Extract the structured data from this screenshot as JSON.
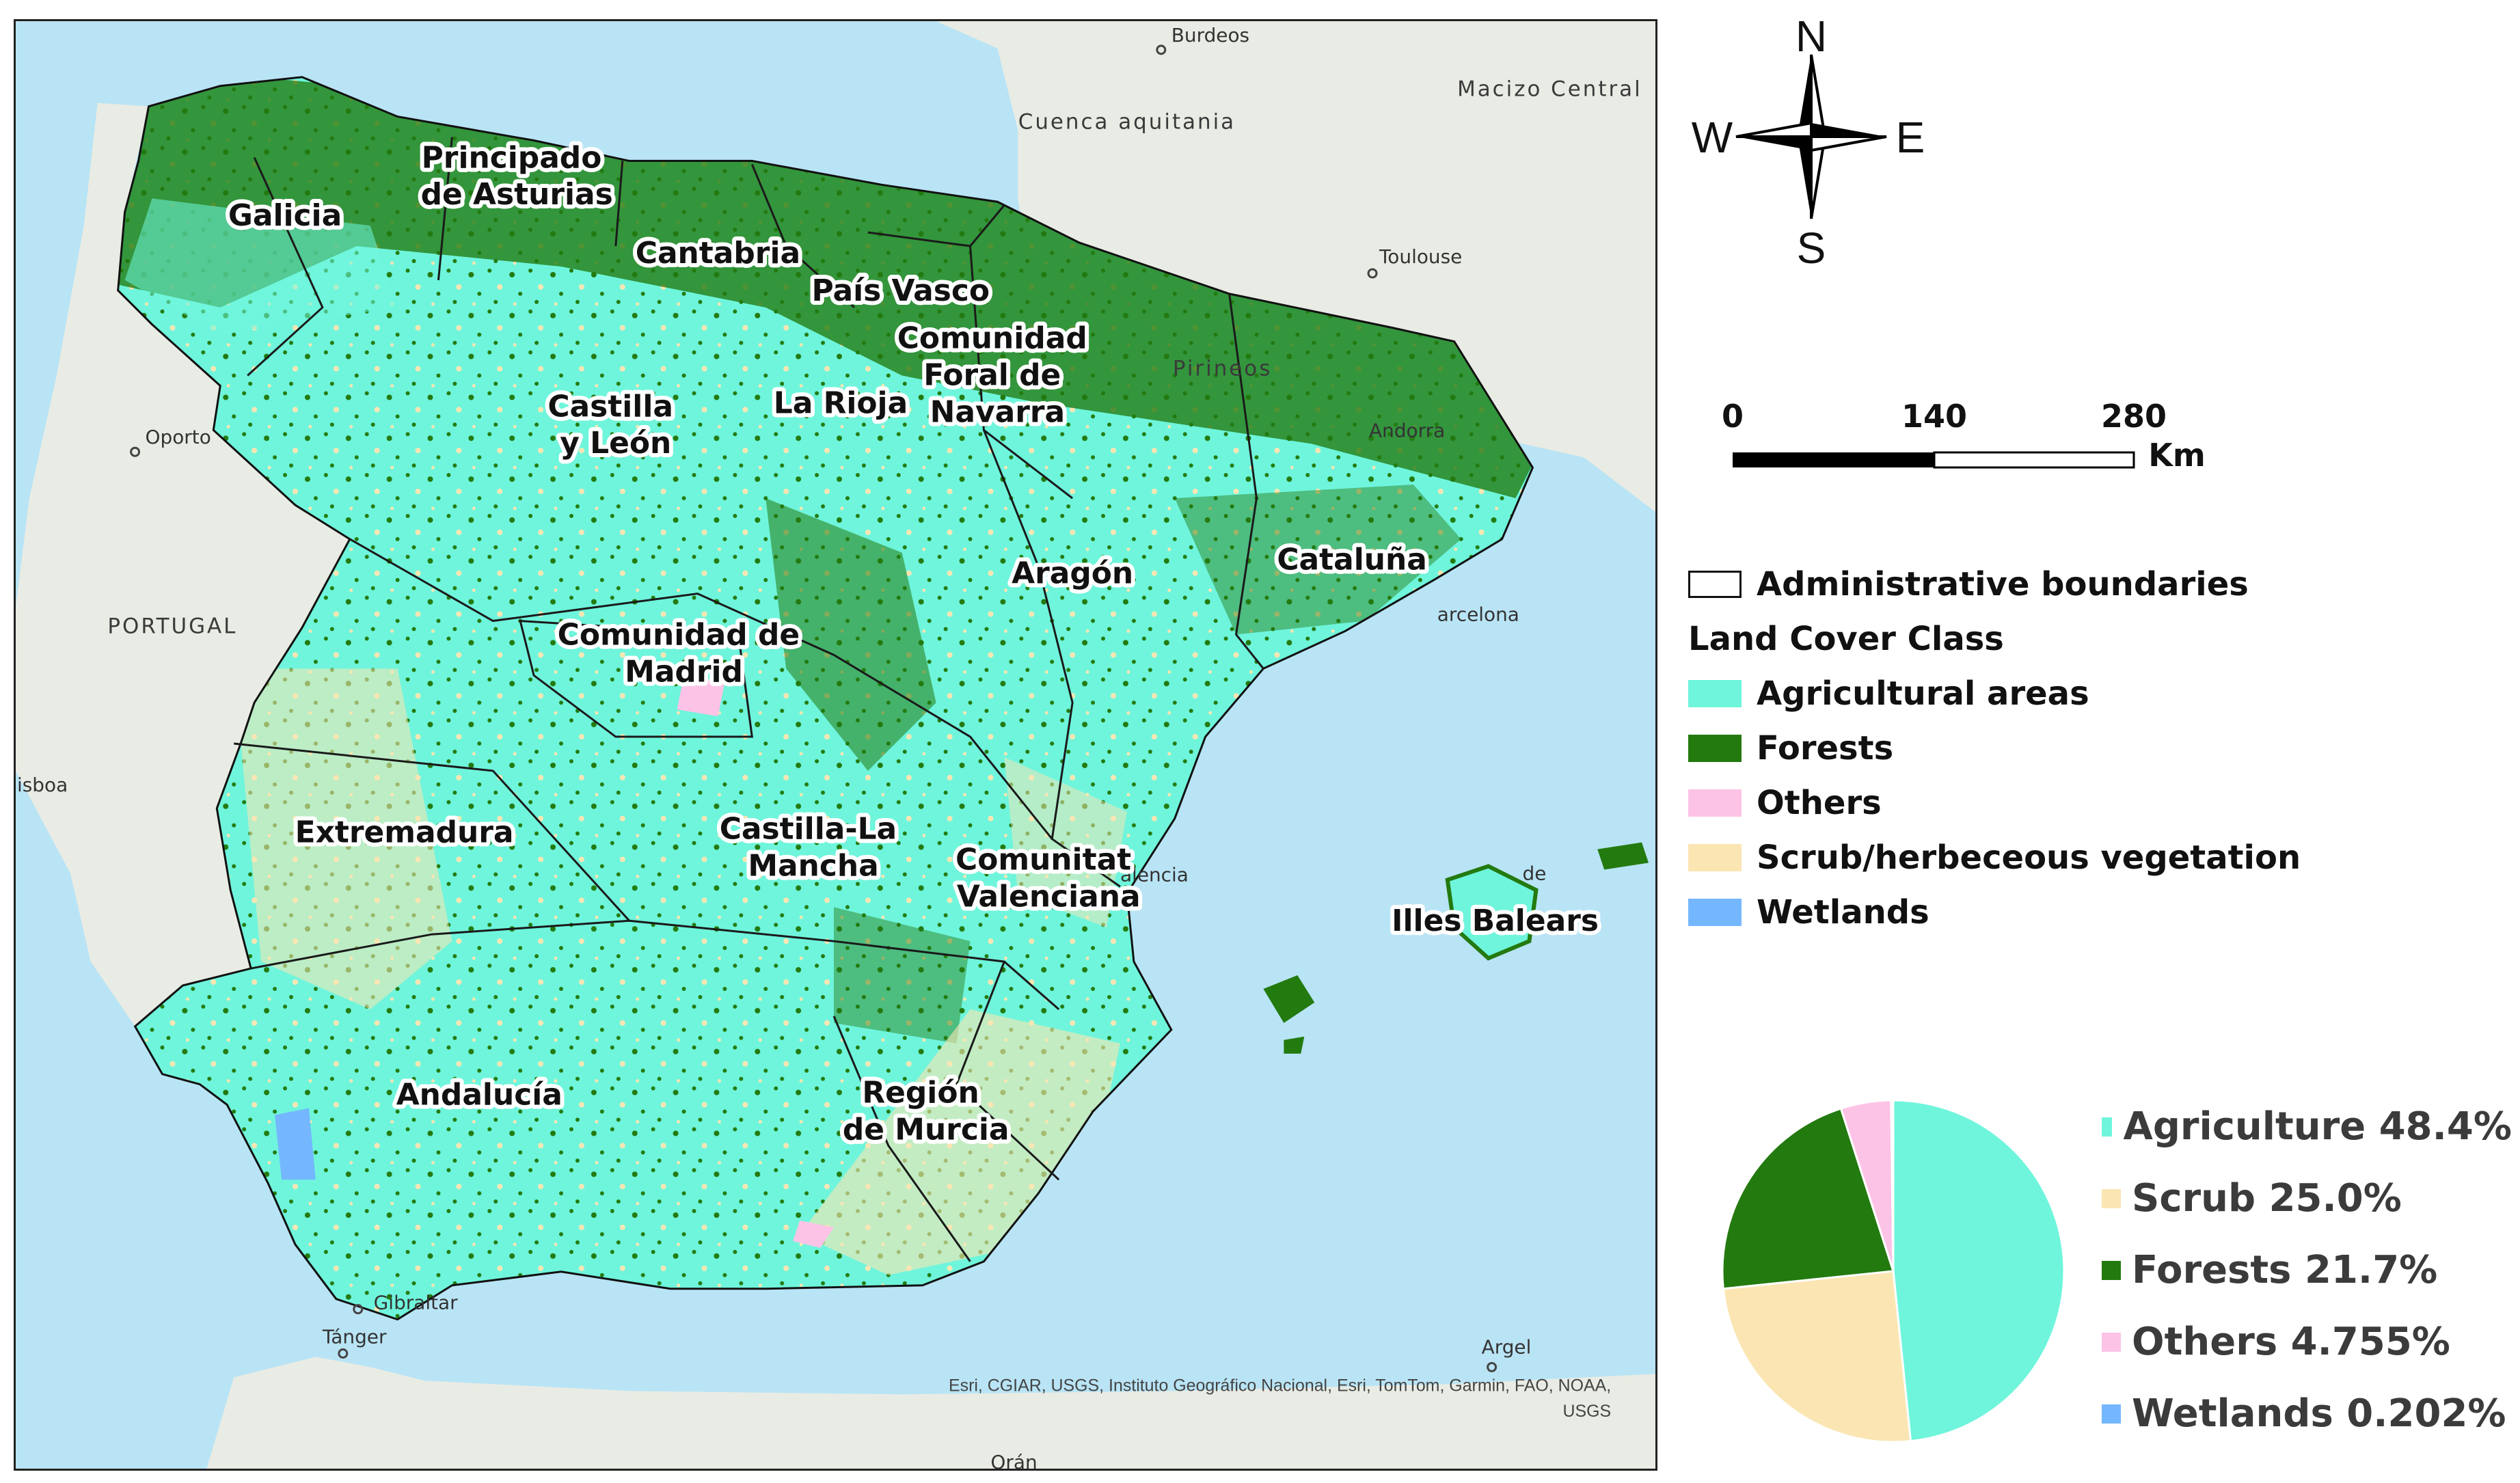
{
  "map": {
    "regions": [
      {
        "name": "Galicia"
      },
      {
        "name": "Principado de Asturias"
      },
      {
        "name": "Cantabria"
      },
      {
        "name": "País Vasco"
      },
      {
        "name": "Comunidad Foral de Navarra"
      },
      {
        "name": "La Rioja"
      },
      {
        "name": "Castilla y León"
      },
      {
        "name": "Aragón"
      },
      {
        "name": "Cataluña"
      },
      {
        "name": "Comunidad de Madrid"
      },
      {
        "name": "Extremadura"
      },
      {
        "name": "Castilla-La Mancha"
      },
      {
        "name": "Comunitat Valenciana"
      },
      {
        "name": "Illes Balears"
      },
      {
        "name": "Andalucía"
      },
      {
        "name": "Región de Murcia"
      }
    ],
    "basemap_labels": {
      "burdeos": "Burdeos",
      "macizo_central": "Macizo Central",
      "cuenca_aquitania": "Cuenca aquitania",
      "toulouse": "Toulouse",
      "pirineos": "Pirineos",
      "andorra": "Andorra",
      "oporto": "Oporto",
      "portugal": "PORTUGAL",
      "lisboa": "isboa",
      "barcelona": "arcelona",
      "valencia": "alencia",
      "palma": "de",
      "gibraltar": "Gibraltar",
      "tanger": "Tánger",
      "argel": "Argel",
      "oran": "Orán"
    },
    "credit_line1": "Esri, CGIAR, USGS, Instituto Geográfico Nacional, Esri, TomTom, Garmin, FAO, NOAA,",
    "credit_line2": "USGS"
  },
  "compass": {
    "n": "N",
    "s": "S",
    "e": "E",
    "w": "W"
  },
  "scalebar": {
    "ticks": [
      "0",
      "140",
      "280"
    ],
    "unit": "Km"
  },
  "legend": {
    "boundary_label": "Administrative boundaries",
    "title": "Land Cover Class",
    "classes": [
      {
        "label": "Agricultural areas",
        "color": "#6ff5dc"
      },
      {
        "label": "Forests",
        "color": "#237a0f"
      },
      {
        "label": "Others",
        "color": "#fdc3e6"
      },
      {
        "label": "Scrub/herbeceous vegetation",
        "color": "#fbe6b3"
      },
      {
        "label": "Wetlands",
        "color": "#74b7ff"
      }
    ]
  },
  "chart_data": {
    "type": "pie",
    "slices": [
      {
        "label": "Agriculture 48.4%",
        "value": 48.4,
        "color": "#6ff5dc"
      },
      {
        "label": "Scrub 25.0%",
        "value": 25.0,
        "color": "#fbe6b3"
      },
      {
        "label": "Forests 21.7%",
        "value": 21.7,
        "color": "#237a0f"
      },
      {
        "label": "Others 4.755%",
        "value": 4.755,
        "color": "#fdc3e6"
      },
      {
        "label": "Wetlands 0.202%",
        "value": 0.202,
        "color": "#74b7ff"
      }
    ]
  },
  "colors": {
    "sea": "#b9e4f5",
    "land_bg": "#e9ece4",
    "agri": "#6ff5dc",
    "forest": "#237a0f",
    "scrub": "#fbe6b3",
    "others": "#fdc3e6",
    "wetlands": "#74b7ff"
  }
}
